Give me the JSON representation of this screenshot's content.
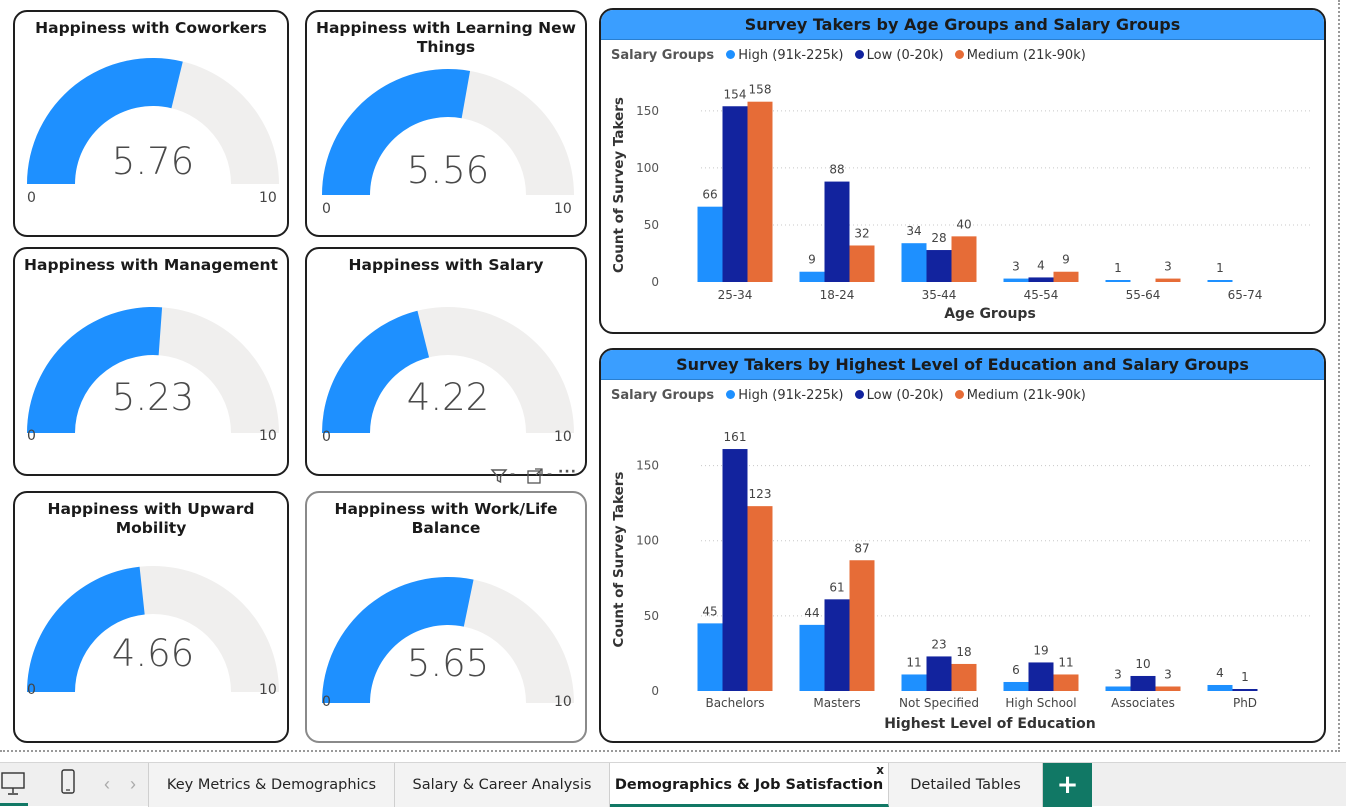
{
  "gauges": [
    {
      "title": "Happiness with Coworkers",
      "value": 5.76,
      "value_label": "5.76",
      "min": "0",
      "max": "10"
    },
    {
      "title": "Happiness with Learning New Things",
      "value": 5.56,
      "value_label": "5.56",
      "min": "0",
      "max": "10"
    },
    {
      "title": "Happiness with Management",
      "value": 5.23,
      "value_label": "5.23",
      "min": "0",
      "max": "10"
    },
    {
      "title": "Happiness with Salary",
      "value": 4.22,
      "value_label": "4.22",
      "min": "0",
      "max": "10"
    },
    {
      "title": "Happiness with Upward Mobility",
      "value": 4.66,
      "value_label": "4.66",
      "min": "0",
      "max": "10"
    },
    {
      "title": "Happiness with Work/Life Balance",
      "value": 5.65,
      "value_label": "5.65",
      "min": "0",
      "max": "10"
    }
  ],
  "gauge_colors": {
    "fill": "#1e90ff",
    "track": "#f0efee"
  },
  "chart_data": [
    {
      "type": "bar",
      "title": "Survey Takers by Age Groups and Salary Groups",
      "legend_title": "Salary Groups",
      "legend_position": "top-left",
      "xlabel": "Age Groups",
      "ylabel": "Count of Survey Takers",
      "ylim": [
        0,
        170
      ],
      "yticks": [
        0,
        50,
        100,
        150
      ],
      "grid": true,
      "categories": [
        "25-34",
        "18-24",
        "35-44",
        "45-54",
        "55-64",
        "65-74"
      ],
      "series": [
        {
          "name": "High (91k-225k)",
          "color": "#1e90ff",
          "values": [
            66,
            9,
            34,
            3,
            1,
            1
          ]
        },
        {
          "name": "Low (0-20k)",
          "color": "#12239e",
          "values": [
            154,
            88,
            28,
            4,
            null,
            null
          ]
        },
        {
          "name": "Medium (21k-90k)",
          "color": "#e66c37",
          "values": [
            158,
            32,
            40,
            9,
            3,
            null
          ]
        }
      ]
    },
    {
      "type": "bar",
      "title": "Survey Takers by Highest Level of Education and Salary Groups",
      "legend_title": "Salary Groups",
      "legend_position": "top-left",
      "xlabel": "Highest Level of Education",
      "ylabel": "Count of Survey Takers",
      "ylim": [
        0,
        175
      ],
      "yticks": [
        0,
        50,
        100,
        150
      ],
      "grid": true,
      "categories": [
        "Bachelors",
        "Masters",
        "Not Specified",
        "High School",
        "Associates",
        "PhD"
      ],
      "series": [
        {
          "name": "High (91k-225k)",
          "color": "#1e90ff",
          "values": [
            45,
            44,
            11,
            6,
            3,
            4
          ]
        },
        {
          "name": "Low (0-20k)",
          "color": "#12239e",
          "values": [
            161,
            61,
            23,
            19,
            10,
            1
          ]
        },
        {
          "name": "Medium (21k-90k)",
          "color": "#e66c37",
          "values": [
            123,
            87,
            18,
            11,
            3,
            null
          ]
        }
      ]
    }
  ],
  "toolbar": {
    "filter_icon": "filter-icon",
    "focus_icon": "focus-mode-icon",
    "more_label": "···"
  },
  "tabs": [
    {
      "label": "Key Metrics & Demographics",
      "active": false
    },
    {
      "label": "Salary & Career Analysis",
      "active": false
    },
    {
      "label": "Demographics & Job Satisfaction",
      "active": true
    },
    {
      "label": "Detailed Tables",
      "active": false
    }
  ],
  "tab_close_label": "x",
  "add_page_label": "+",
  "nav": {
    "prev": "‹",
    "next": "›"
  }
}
